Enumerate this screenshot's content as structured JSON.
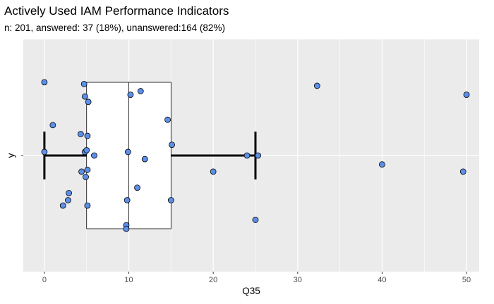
{
  "chart_data": {
    "type": "boxplot",
    "title": "Actively Used IAM Performance Indicators",
    "subtitle": "n: 201, answered: 37 (18%), unanswered:164 (82%)",
    "xlabel": "Q35",
    "ylabel": "y",
    "xlim": [
      -2.5,
      51.5
    ],
    "x_ticks": [
      0,
      10,
      20,
      30,
      40,
      50
    ],
    "x_tick_labels": [
      "0",
      "10",
      "20",
      "30",
      "40",
      "50"
    ],
    "grid": true,
    "background_color": "#ebebeb",
    "point_color": "#5b8fe8",
    "box": {
      "whisker_low": 0,
      "q1": 5,
      "median": 10,
      "q3": 15,
      "whisker_high": 25
    },
    "points": [
      {
        "x": 0,
        "jitter": 0.41
      },
      {
        "x": 4.7,
        "jitter": 0.4
      },
      {
        "x": 11.4,
        "jitter": 0.36
      },
      {
        "x": 4.8,
        "jitter": 0.33
      },
      {
        "x": 10.2,
        "jitter": 0.34
      },
      {
        "x": 5.2,
        "jitter": 0.3
      },
      {
        "x": 32.3,
        "jitter": 0.39
      },
      {
        "x": 50,
        "jitter": 0.34
      },
      {
        "x": 14.6,
        "jitter": 0.2
      },
      {
        "x": 1,
        "jitter": 0.17
      },
      {
        "x": 4.3,
        "jitter": 0.12
      },
      {
        "x": 5.1,
        "jitter": 0.11
      },
      {
        "x": 15.1,
        "jitter": 0.06
      },
      {
        "x": 0,
        "jitter": 0.02
      },
      {
        "x": 4.8,
        "jitter": 0.02
      },
      {
        "x": 5,
        "jitter": 0.03
      },
      {
        "x": 5.9,
        "jitter": 0
      },
      {
        "x": 9.9,
        "jitter": 0.02
      },
      {
        "x": 11.9,
        "jitter": -0.02
      },
      {
        "x": 24,
        "jitter": 0
      },
      {
        "x": 25.3,
        "jitter": 0
      },
      {
        "x": 4.4,
        "jitter": -0.09
      },
      {
        "x": 5.1,
        "jitter": -0.08
      },
      {
        "x": 4.9,
        "jitter": -0.12
      },
      {
        "x": 20,
        "jitter": -0.09
      },
      {
        "x": 40,
        "jitter": -0.05
      },
      {
        "x": 49.6,
        "jitter": -0.09
      },
      {
        "x": 11,
        "jitter": -0.18
      },
      {
        "x": 2.9,
        "jitter": -0.21
      },
      {
        "x": 2.8,
        "jitter": -0.25
      },
      {
        "x": 2.2,
        "jitter": -0.28
      },
      {
        "x": 5.1,
        "jitter": -0.28
      },
      {
        "x": 9.8,
        "jitter": -0.25
      },
      {
        "x": 15,
        "jitter": -0.25
      },
      {
        "x": 25,
        "jitter": -0.36
      },
      {
        "x": 9.7,
        "jitter": -0.39
      },
      {
        "x": 9.7,
        "jitter": -0.41
      }
    ]
  }
}
